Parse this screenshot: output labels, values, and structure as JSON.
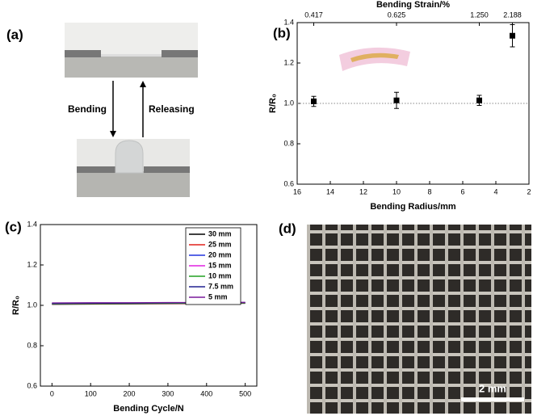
{
  "panel_a": {
    "label": "(a)",
    "down_arrow": "Bending",
    "up_arrow": "Releasing"
  },
  "panel_d": {
    "label": "(d)",
    "scale_bar": "2 mm"
  },
  "chart_data": [
    {
      "type": "scatter",
      "panel_label": "(b)",
      "xlabel": "Bending Radius/mm",
      "ylabel": "R/R₀",
      "x2label": "Bending Strain/%",
      "x": [
        15,
        10,
        5,
        3
      ],
      "series": [
        {
          "color": "#000000",
          "values": [
            1.01,
            1.015,
            1.015,
            1.335
          ],
          "errors": [
            0.025,
            0.04,
            0.025,
            0.055
          ]
        }
      ],
      "xlim": [
        16,
        2
      ],
      "xticks": [
        16,
        14,
        12,
        10,
        8,
        6,
        4,
        2
      ],
      "x2ticks": [
        {
          "value": 15,
          "label": "0.417"
        },
        {
          "value": 10,
          "label": "0.625"
        },
        {
          "value": 5,
          "label": "1.250"
        },
        {
          "value": 3,
          "label": "2.188"
        }
      ],
      "ylim": [
        0.6,
        1.4
      ],
      "yticks": [
        0.6,
        0.8,
        {
          "value": 1,
          "label": "1.0"
        },
        1.2,
        1.4
      ],
      "reference_line": 1
    },
    {
      "type": "line",
      "panel_label": "(c)",
      "xlabel": "Bending Cycle/N",
      "ylabel": "R/R₀",
      "x": [
        0,
        100,
        200,
        300,
        400,
        500
      ],
      "series": [
        {
          "name": "30 mm",
          "color": "#000000",
          "values": [
            1.005,
            1.006,
            1.007,
            1.008,
            1.009,
            1.01
          ]
        },
        {
          "name": "25 mm",
          "color": "#e0201b",
          "values": [
            1.006,
            1.007,
            1.008,
            1.009,
            1.01,
            1.011
          ]
        },
        {
          "name": "20 mm",
          "color": "#2233dd",
          "values": [
            1.008,
            1.009,
            1.01,
            1.011,
            1.012,
            1.012
          ]
        },
        {
          "name": "15 mm",
          "color": "#e020e0",
          "values": [
            1.01,
            1.011,
            1.012,
            1.012,
            1.013,
            1.013
          ]
        },
        {
          "name": "10 mm",
          "color": "#20a020",
          "values": [
            1.007,
            1.008,
            1.009,
            1.01,
            1.011,
            1.012
          ]
        },
        {
          "name": "7.5 mm",
          "color": "#202090",
          "values": [
            1.009,
            1.01,
            1.011,
            1.012,
            1.013,
            1.014
          ]
        },
        {
          "name": "5 mm",
          "color": "#7a1a9a",
          "values": [
            1.012,
            1.013,
            1.013,
            1.014,
            1.014,
            1.015
          ]
        }
      ],
      "xlim": [
        -30,
        530
      ],
      "xticks": [
        0,
        100,
        200,
        300,
        400,
        500
      ],
      "ylim": [
        0.6,
        1.4
      ],
      "yticks": [
        0.6,
        0.8,
        {
          "value": 1,
          "label": "1.0"
        },
        1.2,
        1.4
      ],
      "legend": "upper right"
    }
  ]
}
